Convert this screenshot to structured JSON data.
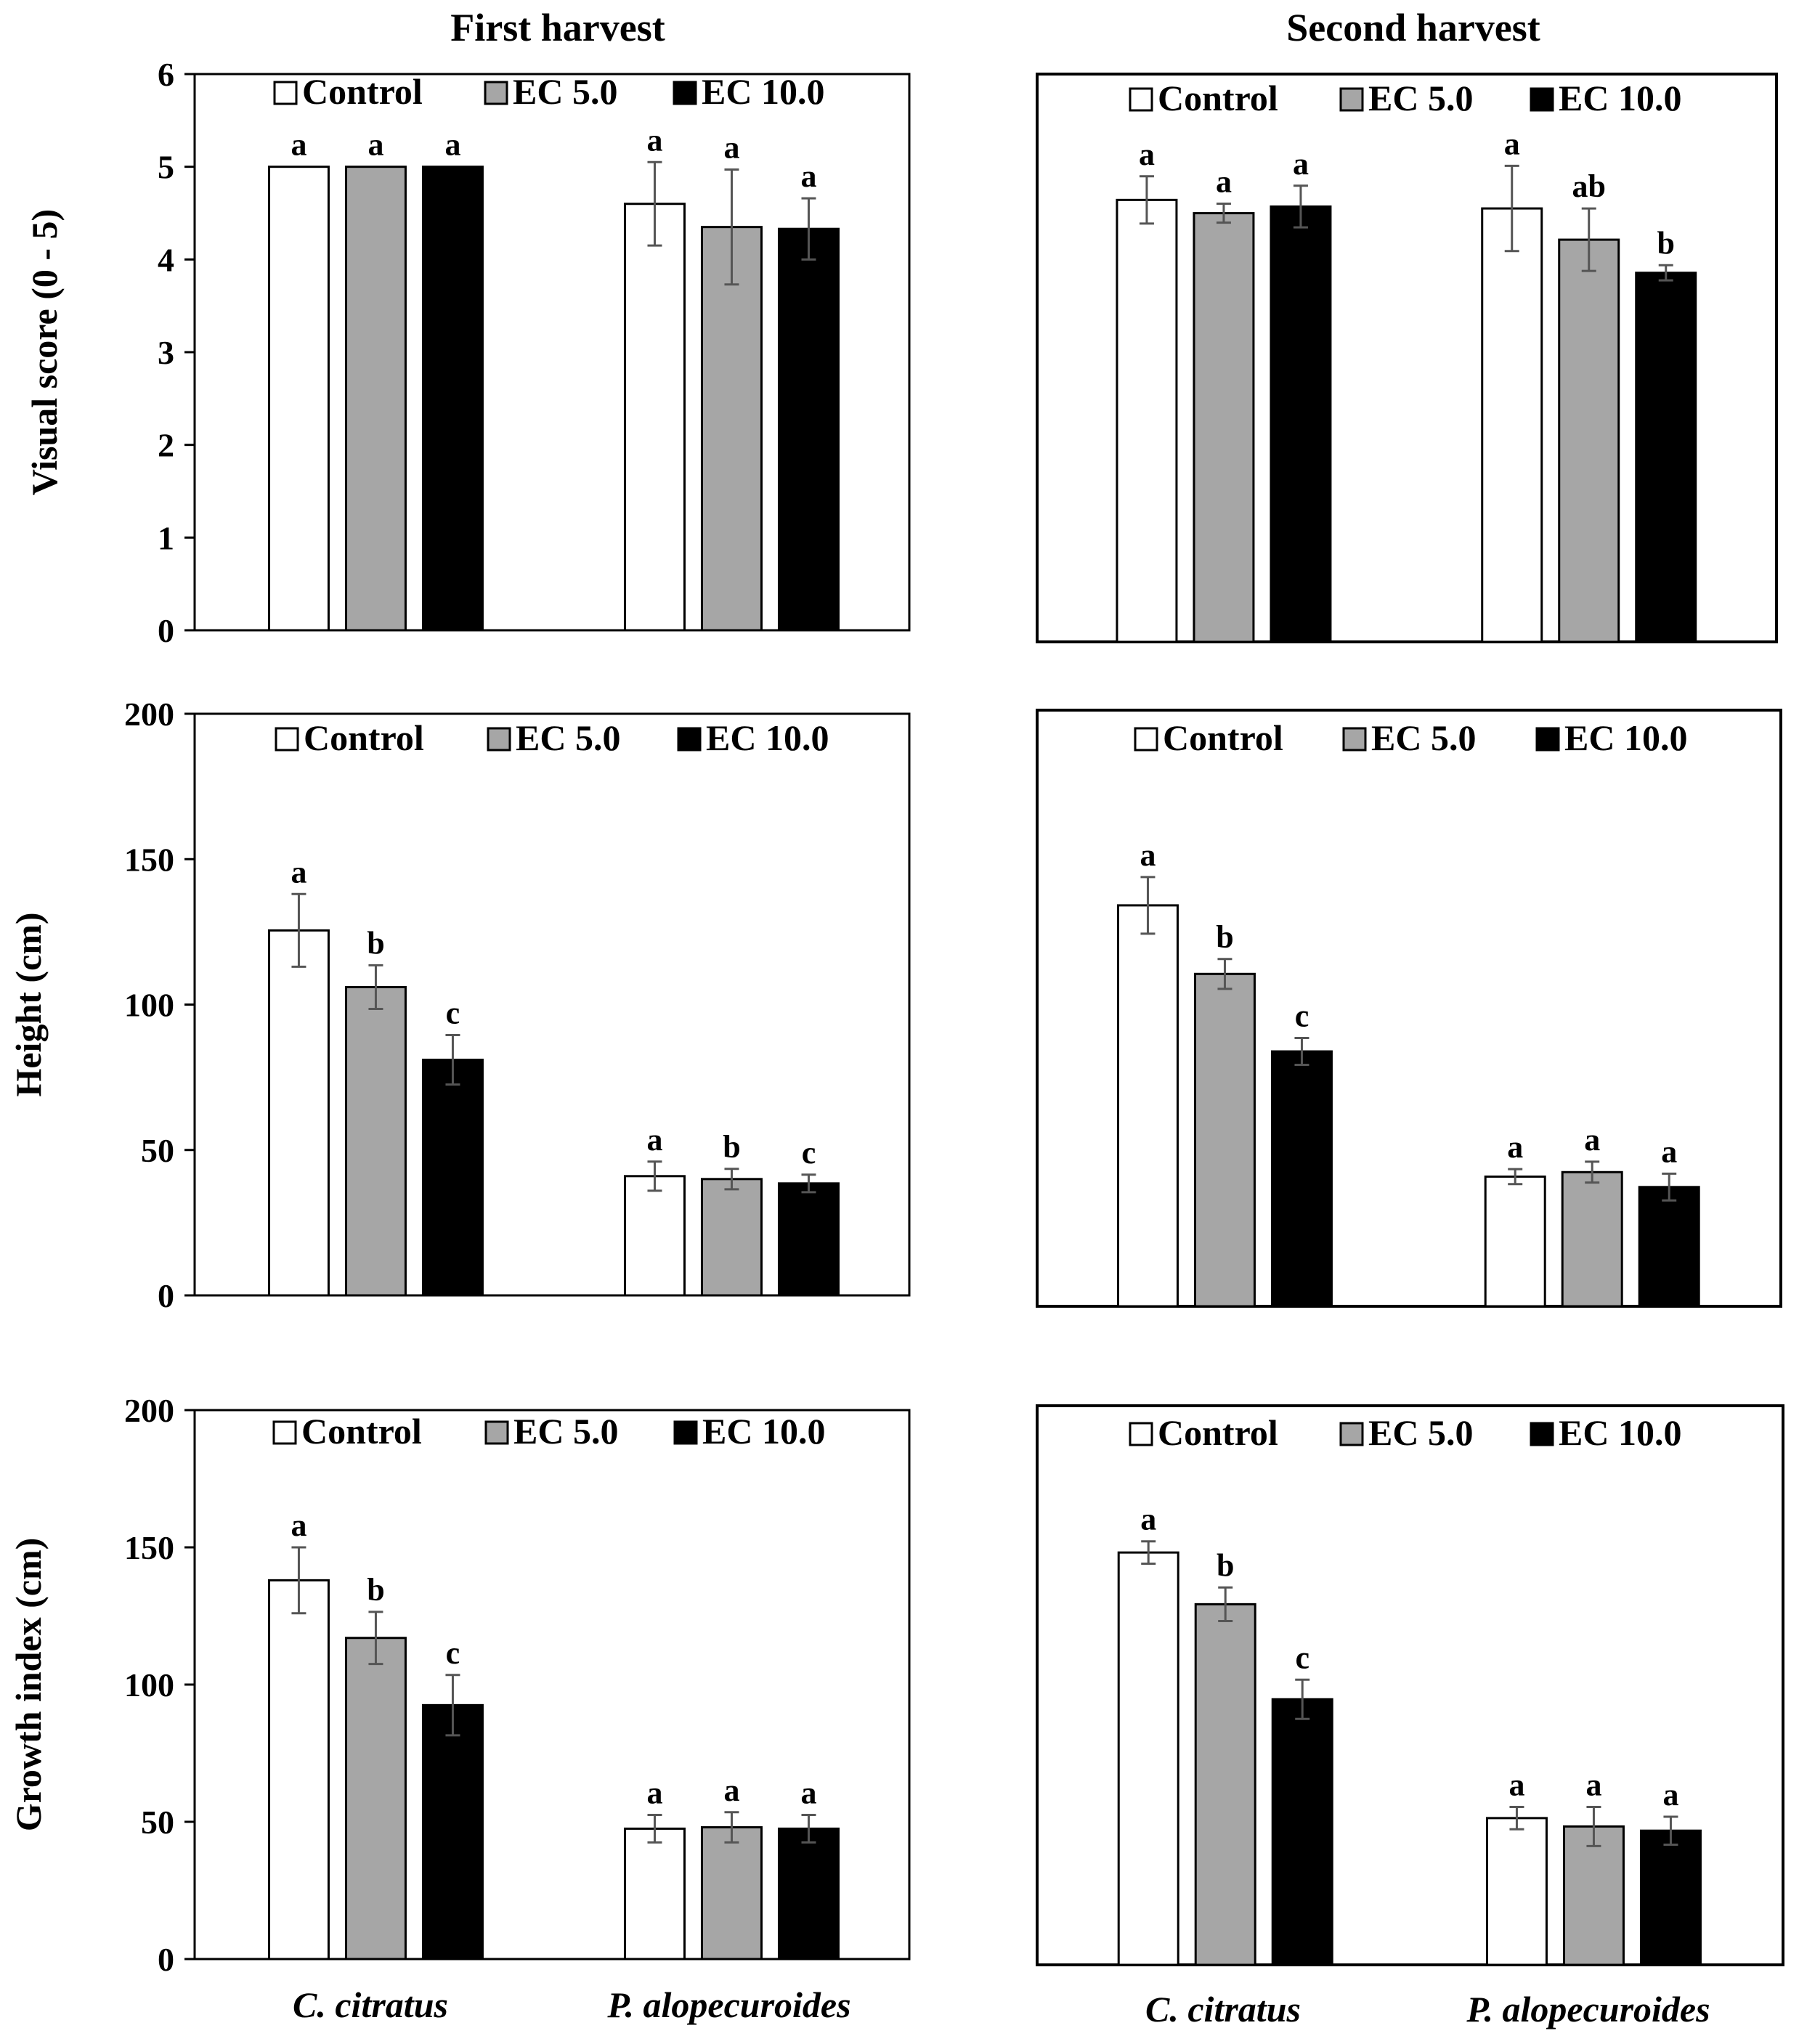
{
  "figure": {
    "column_titles": [
      "First harvest",
      "Second harvest"
    ],
    "x_categories": [
      "C. citratus",
      "P. alopecuroides"
    ],
    "row_ylabels": [
      "Visual score (0 - 5)",
      "Height (cm)",
      "Growth index (cm)"
    ]
  },
  "colors": {
    "Control": "#ffffff",
    "EC 5.0": "#a6a6a6",
    "EC 10.0": "#000000",
    "axis": "#000000",
    "errorbar": "#555555"
  },
  "chart_data": [
    {
      "type": "bar",
      "panel": "visual-first",
      "title": "First harvest",
      "ylabel": "Visual score (0 - 5)",
      "ylim": [
        0,
        6
      ],
      "yticks": [
        0,
        1,
        2,
        3,
        4,
        5,
        6
      ],
      "categories": [
        "C. citratus",
        "P. alopecuroides"
      ],
      "legend": [
        "Control",
        "EC 5.0",
        "EC 10.0"
      ],
      "series": [
        {
          "name": "Control",
          "values": [
            5.0,
            4.6
          ],
          "errors": [
            0.0,
            0.45
          ],
          "letters": [
            "a",
            "a"
          ]
        },
        {
          "name": "EC 5.0",
          "values": [
            5.0,
            4.35
          ],
          "errors": [
            0.0,
            0.62
          ],
          "letters": [
            "a",
            "a"
          ]
        },
        {
          "name": "EC 10.0",
          "values": [
            5.0,
            4.33
          ],
          "errors": [
            0.0,
            0.33
          ],
          "letters": [
            "a",
            "a"
          ]
        }
      ]
    },
    {
      "type": "bar",
      "panel": "visual-second",
      "title": "Second harvest",
      "ylabel": "",
      "ylim": [
        0,
        6
      ],
      "yticks": [],
      "categories": [
        "C. citratus",
        "P. alopecuroides"
      ],
      "legend": [
        "Control",
        "EC 5.0",
        "EC 10.0"
      ],
      "series": [
        {
          "name": "Control",
          "values": [
            4.67,
            4.58
          ],
          "errors": [
            0.25,
            0.45
          ],
          "letters": [
            "a",
            "a"
          ]
        },
        {
          "name": "EC 5.0",
          "values": [
            4.53,
            4.25
          ],
          "errors": [
            0.1,
            0.33
          ],
          "letters": [
            "a",
            "ab"
          ]
        },
        {
          "name": "EC 10.0",
          "values": [
            4.6,
            3.9
          ],
          "errors": [
            0.22,
            0.08
          ],
          "letters": [
            "a",
            "b"
          ]
        }
      ]
    },
    {
      "type": "bar",
      "panel": "height-first",
      "title": "First harvest",
      "ylabel": "Height (cm)",
      "ylim": [
        0,
        200
      ],
      "yticks": [
        0,
        50,
        100,
        150,
        200
      ],
      "categories": [
        "C. citratus",
        "P. alopecuroides"
      ],
      "legend": [
        "Control",
        "EC 5.0",
        "EC 10.0"
      ],
      "series": [
        {
          "name": "Control",
          "values": [
            125.5,
            41.0
          ],
          "errors": [
            12.5,
            5.0
          ],
          "letters": [
            "a",
            "a"
          ]
        },
        {
          "name": "EC 5.0",
          "values": [
            106.0,
            40.0
          ],
          "errors": [
            7.5,
            3.5
          ],
          "letters": [
            "b",
            "b"
          ]
        },
        {
          "name": "EC 10.0",
          "values": [
            81.0,
            38.5
          ],
          "errors": [
            8.5,
            3.0
          ],
          "letters": [
            "c",
            "c"
          ]
        }
      ]
    },
    {
      "type": "bar",
      "panel": "height-second",
      "title": "Second harvest",
      "ylabel": "",
      "ylim": [
        0,
        200
      ],
      "yticks": [],
      "categories": [
        "C. citratus",
        "P. alopecuroides"
      ],
      "legend": [
        "Control",
        "EC 5.0",
        "EC 10.0"
      ],
      "series": [
        {
          "name": "Control",
          "values": [
            134.5,
            43.5
          ],
          "errors": [
            9.5,
            2.5
          ],
          "letters": [
            "a",
            "a"
          ]
        },
        {
          "name": "EC 5.0",
          "values": [
            111.5,
            45.0
          ],
          "errors": [
            5.0,
            3.5
          ],
          "letters": [
            "b",
            "a"
          ]
        },
        {
          "name": "EC 10.0",
          "values": [
            85.5,
            40.0
          ],
          "errors": [
            4.5,
            4.5
          ],
          "letters": [
            "c",
            "a"
          ]
        }
      ]
    },
    {
      "type": "bar",
      "panel": "growth-first",
      "title": "First harvest",
      "ylabel": "Growth index (cm)",
      "ylim": [
        0,
        200
      ],
      "yticks": [
        0,
        50,
        100,
        150,
        200
      ],
      "categories": [
        "C. citratus",
        "P. alopecuroides"
      ],
      "legend": [
        "Control",
        "EC 5.0",
        "EC 10.0"
      ],
      "series": [
        {
          "name": "Control",
          "values": [
            138.0,
            47.5
          ],
          "errors": [
            12.0,
            5.0
          ],
          "letters": [
            "a",
            "a"
          ]
        },
        {
          "name": "EC 5.0",
          "values": [
            117.0,
            48.0
          ],
          "errors": [
            9.5,
            5.5
          ],
          "letters": [
            "b",
            "a"
          ]
        },
        {
          "name": "EC 10.0",
          "values": [
            92.5,
            47.5
          ],
          "errors": [
            11.0,
            5.0
          ],
          "letters": [
            "c",
            "a"
          ]
        }
      ]
    },
    {
      "type": "bar",
      "panel": "growth-second",
      "title": "Second harvest",
      "ylabel": "",
      "ylim": [
        0,
        200
      ],
      "yticks": [],
      "categories": [
        "C. citratus",
        "P. alopecuroides"
      ],
      "legend": [
        "Control",
        "EC 5.0",
        "EC 10.0"
      ],
      "series": [
        {
          "name": "Control",
          "values": [
            147.5,
            52.5
          ],
          "errors": [
            4.0,
            4.0
          ],
          "letters": [
            "a",
            "a"
          ]
        },
        {
          "name": "EC 5.0",
          "values": [
            129.0,
            49.5
          ],
          "errors": [
            6.0,
            7.0
          ],
          "letters": [
            "b",
            "a"
          ]
        },
        {
          "name": "EC 10.0",
          "values": [
            95.0,
            48.0
          ],
          "errors": [
            7.0,
            5.0
          ],
          "letters": [
            "c",
            "a"
          ]
        }
      ]
    }
  ]
}
